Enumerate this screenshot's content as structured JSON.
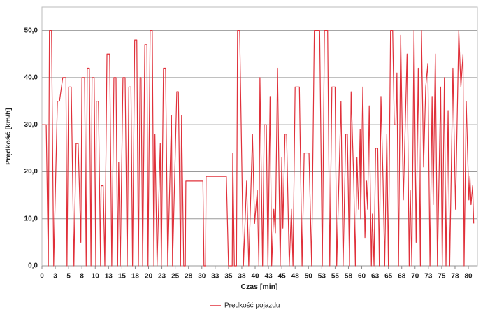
{
  "chart_data": {
    "type": "line",
    "xlabel": "Czas [min]",
    "ylabel": "Prędkość [km/h]",
    "xlim": [
      0,
      81.7
    ],
    "ylim": [
      0,
      55
    ],
    "xticks": [
      0,
      {
        "value": 2.5,
        "label": "3"
      },
      5,
      {
        "value": 7.5,
        "label": "8"
      },
      10,
      {
        "value": 12.5,
        "label": "13"
      },
      15,
      {
        "value": 17.5,
        "label": "18"
      },
      20,
      {
        "value": 22.5,
        "label": "23"
      },
      25,
      {
        "value": 27.5,
        "label": "28"
      },
      30,
      {
        "value": 32.5,
        "label": "33"
      },
      35,
      {
        "value": 37.5,
        "label": "38"
      },
      40,
      {
        "value": 42.5,
        "label": "43"
      },
      45,
      {
        "value": 47.5,
        "label": "48"
      },
      50,
      {
        "value": 52.5,
        "label": "53"
      },
      55,
      {
        "value": 57.5,
        "label": "58"
      },
      60,
      {
        "value": 62.5,
        "label": "63"
      },
      65,
      {
        "value": 67.5,
        "label": "68"
      },
      70,
      {
        "value": 72.5,
        "label": "73"
      },
      75,
      {
        "value": 77.5,
        "label": "78"
      },
      80
    ],
    "yticks": [
      {
        "value": 0,
        "label": "0,0"
      },
      {
        "value": 10,
        "label": "10,0"
      },
      {
        "value": 20,
        "label": "20,0"
      },
      {
        "value": 30,
        "label": "30,0"
      },
      {
        "value": 40,
        "label": "40,0"
      },
      {
        "value": 50,
        "label": "50,0"
      }
    ],
    "grid": true,
    "legend": "bottom",
    "x": [
      0,
      0.8,
      1.2,
      1.4,
      1.8,
      2.2,
      2.9,
      3.3,
      3.9,
      4.5,
      4.7,
      5.0,
      5.5,
      6.0,
      6.4,
      6.8,
      7.3,
      7.5,
      8.0,
      8.3,
      8.5,
      8.9,
      9.2,
      9.4,
      9.8,
      10.1,
      10.2,
      10.6,
      11.0,
      11.1,
      11.5,
      11.8,
      12.2,
      12.7,
      13.1,
      13.5,
      13.9,
      14.2,
      14.4,
      14.7,
      15.2,
      15.6,
      16.0,
      16.3,
      16.7,
      17.0,
      17.4,
      17.8,
      18.1,
      18.4,
      18.6,
      18.9,
      19.3,
      19.7,
      19.9,
      20.3,
      20.7,
      21.0,
      21.2,
      21.6,
      22.2,
      22.4,
      22.8,
      23.2,
      23.6,
      24.3,
      24.5,
      25.3,
      25.6,
      26.0,
      26.2,
      26.6,
      26.9,
      27.0,
      30.2,
      30.4,
      30.7,
      30.8,
      34.6,
      35.0,
      35.7,
      35.8,
      36.1,
      36.5,
      36.7,
      37.1,
      37.8,
      38.4,
      38.8,
      39.5,
      39.9,
      40.4,
      40.7,
      40.9,
      41.4,
      41.7,
      42.1,
      42.4,
      42.8,
      43.1,
      43.5,
      43.8,
      44.2,
      44.7,
      45.0,
      45.2,
      45.6,
      45.9,
      46.4,
      46.8,
      47.1,
      47.5,
      48.3,
      48.8,
      49.2,
      50.1,
      50.6,
      51.1,
      52.1,
      52.6,
      53.0,
      53.6,
      54.0,
      54.4,
      55.0,
      55.3,
      56.1,
      56.5,
      57.0,
      57.3,
      57.7,
      58.0,
      58.5,
      58.8,
      59.1,
      59.4,
      59.7,
      59.8,
      60.2,
      60.6,
      60.9,
      61.1,
      61.4,
      61.8,
      62.0,
      62.3,
      62.6,
      63.0,
      63.3,
      63.6,
      64.0,
      64.3,
      64.7,
      65.0,
      65.4,
      65.8,
      66.1,
      66.4,
      66.6,
      66.9,
      67.3,
      67.8,
      68.5,
      68.9,
      69.1,
      69.4,
      69.8,
      70.2,
      70.6,
      71.0,
      71.2,
      71.6,
      72.0,
      72.4,
      72.8,
      73.2,
      73.4,
      73.8,
      74.2,
      74.8,
      75.1,
      75.5,
      75.8,
      76.2,
      76.5,
      77.1,
      77.6,
      78.2,
      78.6,
      79.0,
      79.2,
      79.6,
      80.1,
      80.3,
      80.5,
      80.8,
      81.0
    ],
    "series": [
      {
        "name": "Prędkość pojazdu",
        "color": "#e0303a",
        "values": [
          30,
          30,
          0,
          50,
          50,
          0,
          35,
          35,
          40,
          40,
          0,
          38,
          38,
          0,
          26,
          26,
          5,
          40,
          40,
          0,
          42,
          42,
          0,
          40,
          40,
          0,
          35,
          35,
          0,
          17,
          17,
          0,
          45,
          45,
          0,
          40,
          40,
          0,
          22,
          0,
          40,
          40,
          0,
          38,
          38,
          0,
          48,
          48,
          0,
          40,
          40,
          0,
          47,
          47,
          0,
          50,
          50,
          0,
          28,
          0,
          26,
          0,
          42,
          42,
          0,
          32,
          0,
          37,
          37,
          0,
          32,
          0,
          0,
          18,
          18,
          0,
          0,
          19,
          19,
          0,
          0,
          24,
          0,
          0,
          50,
          50,
          0,
          18,
          0,
          28,
          9,
          16,
          0,
          40,
          0,
          30,
          30,
          0,
          36,
          0,
          12,
          7,
          42,
          0,
          23,
          8,
          28,
          28,
          0,
          12,
          0,
          38,
          38,
          0,
          24,
          24,
          0,
          50,
          50,
          0,
          50,
          50,
          0,
          38,
          38,
          0,
          35,
          0,
          28,
          28,
          0,
          37,
          18,
          0,
          23,
          12,
          29,
          10,
          38,
          6,
          18,
          12,
          34,
          0,
          11,
          0,
          25,
          25,
          0,
          36,
          18,
          0,
          28,
          0,
          50,
          50,
          30,
          30,
          41,
          0,
          49,
          14,
          45,
          0,
          16,
          0,
          50,
          5,
          42,
          0,
          50,
          21,
          38,
          43,
          0,
          36,
          13,
          45,
          0,
          38,
          0,
          40,
          0,
          33,
          0,
          42,
          12,
          50,
          38,
          45,
          0,
          35,
          14,
          19,
          13,
          17,
          9
        ]
      }
    ]
  }
}
